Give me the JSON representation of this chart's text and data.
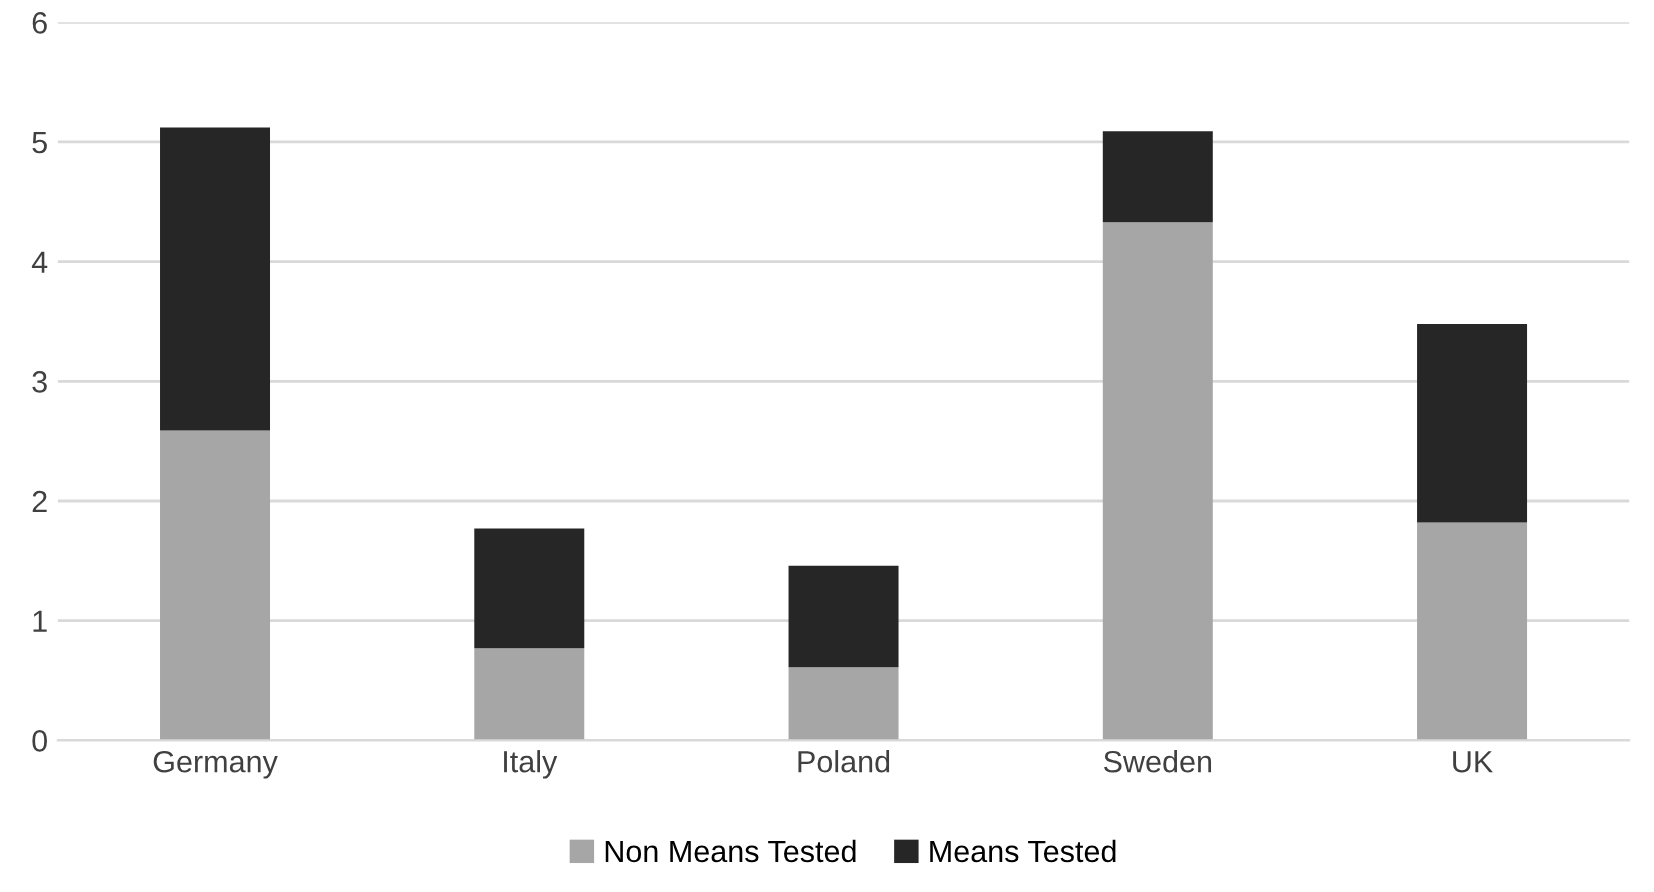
{
  "chart_data": {
    "type": "bar",
    "stacked": true,
    "categories": [
      "Germany",
      "Italy",
      "Poland",
      "Sweden",
      "UK"
    ],
    "series": [
      {
        "name": "Non Means Tested",
        "color": "#a6a6a6",
        "values": [
          2.59,
          0.77,
          0.61,
          4.33,
          1.82
        ]
      },
      {
        "name": "Means Tested",
        "color": "#262626",
        "values": [
          2.53,
          1.0,
          0.85,
          0.76,
          1.66
        ]
      }
    ],
    "ylim": [
      0,
      6
    ],
    "yticks": [
      0,
      1,
      2,
      3,
      4,
      5,
      6
    ],
    "grid": "y",
    "legend": "bottom"
  }
}
